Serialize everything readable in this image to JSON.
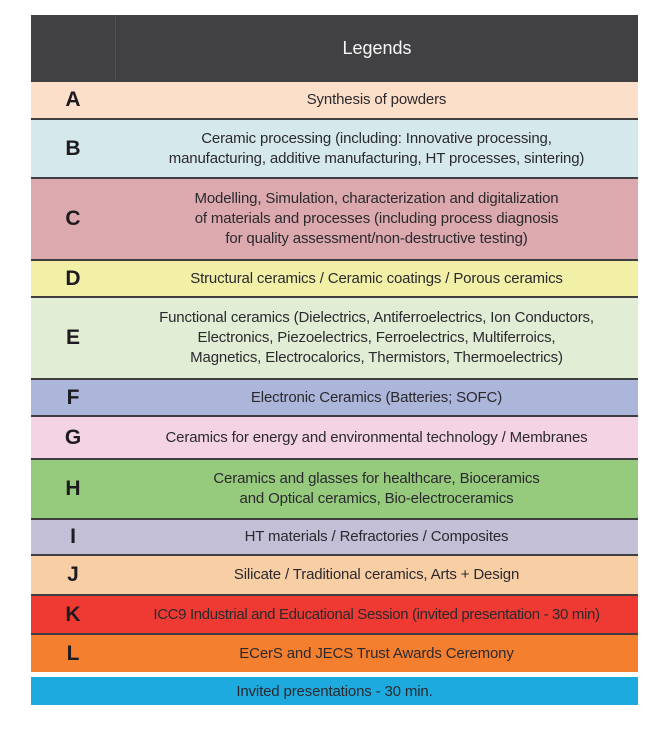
{
  "header": {
    "title": "Legends",
    "bg": "#414042"
  },
  "rows": [
    {
      "letter": "A",
      "text": "Synthesis of powders",
      "bg": "#fcdfc9"
    },
    {
      "letter": "B",
      "text": "Ceramic processing (including: Innovative processing,\nmanufacturing, additive manufacturing, HT processes, sintering)",
      "bg": "#d5e9ec"
    },
    {
      "letter": "C",
      "text": "Modelling, Simulation, characterization and digitalization\nof materials and processes (including process diagnosis\nfor quality assessment/non-destructive testing)",
      "bg": "#dcaaae"
    },
    {
      "letter": "D",
      "text": "Structural ceramics / Ceramic coatings / Porous ceramics",
      "bg": "#f2f0a6"
    },
    {
      "letter": "E",
      "text": "Functional ceramics (Dielectrics, Antiferroelectrics, Ion Conductors,\nElectronics, Piezoelectrics, Ferroelectrics, Multiferroics,\nMagnetics, Electrocalorics, Thermistors, Thermoelectrics)",
      "bg": "#e1edd4"
    },
    {
      "letter": "F",
      "text": "Electronic Ceramics (Batteries; SOFC)",
      "bg": "#acb5da"
    },
    {
      "letter": "G",
      "text": "Ceramics for energy and environmental technology / Membranes",
      "bg": "#f4d4e4"
    },
    {
      "letter": "H",
      "text": "Ceramics and glasses for healthcare, Bioceramics\nand Optical ceramics, Bio-electroceramics",
      "bg": "#96cb7e"
    },
    {
      "letter": "I",
      "text": "HT materials / Refractories / Composites",
      "bg": "#c3bfd7"
    },
    {
      "letter": "J",
      "text": "Silicate / Traditional ceramics, Arts + Design",
      "bg": "#f8cea5"
    },
    {
      "letter": "K",
      "text": "ICC9 Industrial and Educational Session (invited presentation - 30 min)",
      "bg": "#ee3a33"
    },
    {
      "letter": "L",
      "text": "ECerS and JECS Trust Awards Ceremony",
      "bg": "#f47f2f"
    }
  ],
  "footer": {
    "text": "Invited presentations - 30 min.",
    "bg": "#1daade"
  },
  "colors": {
    "border": "#3f3e40",
    "header_text": "#f7f7f7",
    "body_text": "#2b292e",
    "page_background": "#ffffff"
  }
}
